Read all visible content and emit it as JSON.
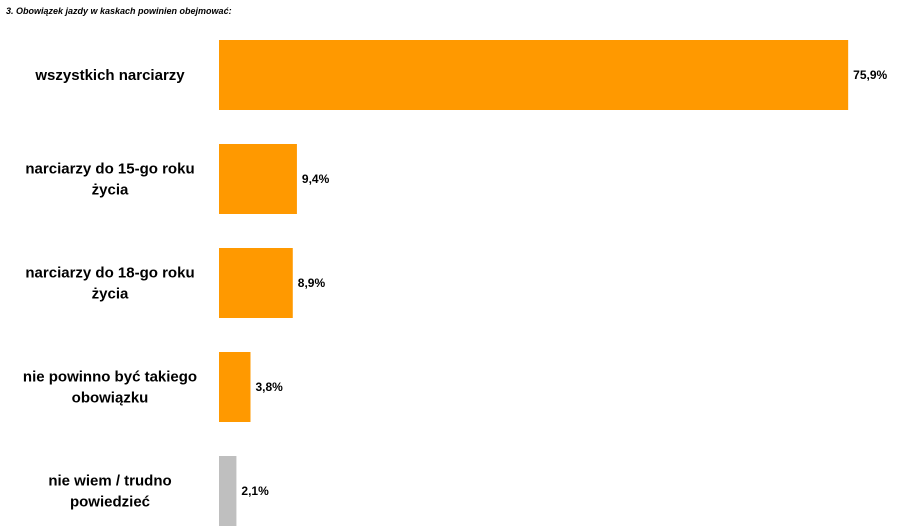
{
  "title": "3. Obowiązek jazdy w kaskach powinien obejmować:",
  "chart_data": {
    "type": "bar",
    "orientation": "horizontal",
    "title": "3. Obowiązek jazdy w kaskach powinien obejmować:",
    "categories": [
      "wszystkich narciarzy",
      "narciarzy do 15-go roku życia",
      "narciarzy do 18-go roku życia",
      "nie powinno być takiego obowiązku",
      "nie wiem / trudno powiedzieć"
    ],
    "category_lines": [
      [
        "wszystkich narciarzy"
      ],
      [
        "narciarzy do 15-go roku",
        "życia"
      ],
      [
        "narciarzy do 18-go roku",
        "życia"
      ],
      [
        "nie powinno być takiego",
        "obowiązku"
      ],
      [
        "nie wiem / trudno",
        "powiedzieć"
      ]
    ],
    "values": [
      75.9,
      9.4,
      8.9,
      3.8,
      2.1
    ],
    "value_labels": [
      "75,9%",
      "9,4%",
      "8,9%",
      "3,8%",
      "2,1%"
    ],
    "colors": [
      "#FF9900",
      "#FF9900",
      "#FF9900",
      "#FF9900",
      "#BFBFBF"
    ],
    "xlim": [
      0,
      76
    ],
    "grid": false,
    "legend": "none"
  }
}
